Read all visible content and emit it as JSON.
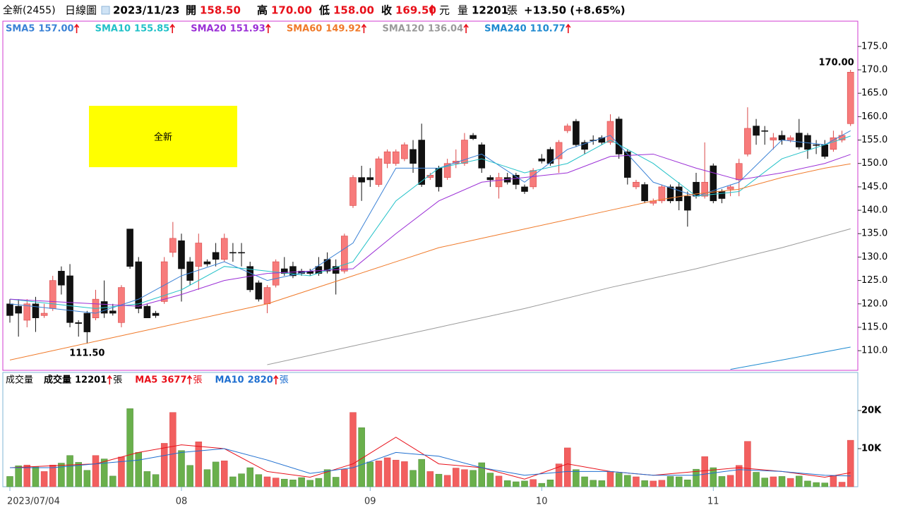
{
  "header": {
    "stock": "全新(2455)",
    "period": "日線圖",
    "date": "2023/11/23",
    "fields": [
      {
        "label": "開",
        "value": "158.50"
      },
      {
        "label": "高",
        "value": "170.00"
      },
      {
        "label": "低",
        "value": "158.00"
      },
      {
        "label": "收",
        "value": "169.50"
      }
    ],
    "unit": "元",
    "volume_label": "量",
    "volume": "12201",
    "volume_unit": "張",
    "change": "+13.50 (+8.65%)"
  },
  "chart_data": [
    {
      "type": "candlestick",
      "categories": [
        "2023/07/04",
        null,
        null,
        null,
        null,
        null,
        null,
        null,
        null,
        null,
        null,
        null,
        null,
        null,
        null,
        null,
        null,
        null,
        null,
        null,
        "08",
        null,
        null,
        null,
        null,
        null,
        null,
        null,
        null,
        null,
        null,
        null,
        null,
        null,
        null,
        null,
        null,
        null,
        null,
        null,
        null,
        null,
        "09",
        null,
        null,
        null,
        null,
        null,
        null,
        null,
        null,
        null,
        null,
        null,
        null,
        null,
        null,
        null,
        null,
        null,
        null,
        null,
        "10",
        null,
        null,
        null,
        null,
        null,
        null,
        null,
        null,
        null,
        null,
        null,
        null,
        null,
        null,
        null,
        null,
        null,
        null,
        null,
        "11",
        null,
        null,
        null,
        null,
        null,
        null,
        null,
        null,
        null,
        null,
        null,
        null,
        null,
        null,
        null,
        null
      ],
      "open": [
        120,
        119.5,
        116.5,
        120,
        117.5,
        119,
        127,
        126,
        116,
        118,
        117,
        120.5,
        118.5,
        116,
        136,
        129,
        119.5,
        118,
        120.5,
        131,
        133.5,
        129,
        128,
        129,
        131,
        129.5,
        131,
        131,
        128,
        124.5,
        120,
        124,
        127.5,
        128,
        127,
        127,
        128,
        129.5,
        128,
        127,
        141,
        147,
        147,
        145.5,
        150,
        150,
        151,
        153,
        155,
        147,
        149,
        147,
        150,
        150,
        156,
        154,
        147,
        145,
        147,
        147.5,
        145,
        145,
        151,
        153,
        151,
        157,
        159,
        154.5,
        155,
        155.5,
        154.5,
        159.5,
        152.5,
        145,
        145.5,
        141.5,
        142,
        145,
        145,
        143,
        146,
        143,
        149.5,
        144,
        144.5,
        146.5,
        152,
        158,
        157,
        155,
        156,
        155,
        156.5,
        156,
        154,
        154,
        153,
        155,
        158.5
      ],
      "high": [
        121,
        121,
        121,
        121.5,
        120,
        126,
        128,
        128.5,
        116.5,
        118.5,
        123,
        125,
        120,
        124,
        136,
        130,
        120,
        118.5,
        130,
        137.5,
        135,
        130,
        135,
        129.5,
        133,
        135,
        133,
        133,
        129,
        125,
        124,
        129.5,
        130,
        129,
        127.5,
        127.5,
        130,
        131,
        129.5,
        135,
        147.5,
        149.5,
        149,
        151.5,
        153,
        153,
        154.5,
        155,
        158.5,
        148,
        149.5,
        151,
        153,
        156.5,
        156.5,
        154.5,
        147.5,
        148,
        148,
        148,
        145.5,
        149,
        152,
        153.5,
        155,
        158.5,
        159.5,
        155,
        156,
        156,
        160.5,
        160,
        153,
        146.5,
        146,
        142.5,
        145.5,
        145.5,
        146,
        144,
        148,
        154.5,
        150,
        144.5,
        145.5,
        151,
        162,
        159.5,
        158,
        156.5,
        157,
        156,
        159.5,
        156.5,
        155,
        155,
        157,
        157,
        170
      ],
      "low": [
        116,
        113,
        115,
        114,
        117,
        118.5,
        122,
        115,
        113,
        111.5,
        116.5,
        117,
        117.5,
        115,
        127.5,
        118,
        117,
        117,
        120,
        130,
        120.5,
        124,
        123,
        128,
        128,
        129,
        129,
        128,
        122.5,
        120.5,
        118,
        123.5,
        126,
        125.5,
        126,
        126,
        126,
        126.5,
        122,
        126.5,
        140.5,
        142,
        145,
        145,
        149,
        149.5,
        150.5,
        148,
        145,
        146.5,
        144,
        146.5,
        149,
        149.5,
        155,
        148,
        145,
        142.5,
        145.5,
        144.5,
        143.5,
        144.5,
        150,
        149.5,
        148,
        156.5,
        153.5,
        152,
        154,
        154,
        154,
        151,
        145.5,
        144.5,
        141.5,
        141,
        141.5,
        141.5,
        140,
        136.5,
        142.5,
        142.5,
        141.5,
        141.5,
        143,
        143,
        151.5,
        154,
        154,
        153,
        154,
        154.5,
        153,
        151,
        152,
        151,
        152.5,
        154.5,
        158
      ],
      "close": [
        117.5,
        118,
        120,
        117,
        118,
        125,
        124,
        116,
        115.8,
        114,
        121,
        118,
        118,
        123.5,
        128,
        119,
        117,
        117.5,
        129,
        134,
        127.5,
        125,
        133,
        128.5,
        129.5,
        134,
        131,
        131,
        123,
        121,
        123.5,
        129,
        126.5,
        126,
        126.5,
        126.5,
        126.5,
        127,
        126.5,
        134.5,
        147,
        146,
        146.5,
        151,
        152.5,
        152.5,
        154,
        150,
        145.5,
        147.5,
        145,
        150,
        150.5,
        155,
        155.3,
        149,
        146.5,
        147,
        146,
        145.5,
        144,
        148.5,
        150.5,
        150,
        154.5,
        158,
        154,
        153,
        155,
        154.5,
        159,
        152,
        147,
        146,
        142,
        142,
        145,
        142,
        142,
        140,
        143,
        146,
        142,
        142.5,
        145,
        150,
        157.5,
        156,
        157,
        155.5,
        155,
        155.5,
        153.5,
        153,
        154,
        151.5,
        155.5,
        156,
        169.5
      ],
      "up_color": "#f77b7b",
      "down_color": "#111111",
      "ylim": [
        105.8,
        180.4
      ],
      "yticks": [
        {
          "value": 110,
          "label": "110.0"
        },
        {
          "value": 115,
          "label": "115.0"
        },
        {
          "value": 120,
          "label": "120.0"
        },
        {
          "value": 125,
          "label": "125.0"
        },
        {
          "value": 130,
          "label": "130.0"
        },
        {
          "value": 135,
          "label": "135.0"
        },
        {
          "value": 140,
          "label": "140.0"
        },
        {
          "value": 145,
          "label": "145.0"
        },
        {
          "value": 150,
          "label": "150.0"
        },
        {
          "value": 155,
          "label": "155.0"
        },
        {
          "value": 160,
          "label": "160.0"
        },
        {
          "value": 165,
          "label": "165.0"
        },
        {
          "value": 170,
          "label": "170.0"
        },
        {
          "value": 175,
          "label": "175.0"
        }
      ],
      "series": [
        {
          "name": "SMA5",
          "label": "157.00",
          "color": "#3b82d6",
          "x": [
            0,
            5,
            10,
            15,
            20,
            25,
            30,
            35,
            40,
            45,
            50,
            55,
            60,
            65,
            70,
            75,
            80,
            85,
            90,
            95,
            98
          ],
          "values": [
            120,
            119,
            118,
            121,
            126,
            129,
            125,
            127,
            133,
            149,
            149,
            152,
            146,
            153,
            156,
            146,
            143,
            146,
            155,
            154,
            157
          ]
        },
        {
          "name": "SMA10",
          "label": "155.85",
          "color": "#22c1c8",
          "x": [
            0,
            5,
            10,
            15,
            20,
            25,
            30,
            35,
            40,
            45,
            50,
            55,
            60,
            65,
            70,
            75,
            80,
            85,
            90,
            95,
            98
          ],
          "values": [
            121,
            120,
            119,
            120,
            123,
            128,
            127,
            126,
            129,
            142,
            149,
            151,
            148,
            150,
            155,
            150,
            143,
            144,
            151,
            154,
            155.85
          ]
        },
        {
          "name": "SMA20",
          "label": "151.93",
          "color": "#9b2fd6",
          "x": [
            0,
            5,
            10,
            15,
            20,
            25,
            30,
            35,
            40,
            45,
            50,
            55,
            60,
            65,
            70,
            75,
            80,
            85,
            90,
            95,
            98
          ],
          "values": [
            121,
            120.5,
            120,
            119.5,
            122,
            125,
            126.5,
            127,
            127.5,
            135,
            142,
            146,
            147,
            148,
            151.5,
            152,
            149,
            146.5,
            148,
            150,
            151.93
          ]
        },
        {
          "name": "SMA60",
          "label": "149.92",
          "color": "#f07a2a",
          "x": [
            0,
            5,
            10,
            15,
            20,
            25,
            30,
            35,
            40,
            45,
            50,
            55,
            60,
            65,
            70,
            75,
            80,
            85,
            90,
            95,
            98
          ],
          "values": [
            108,
            110,
            112,
            114,
            116,
            118,
            120,
            123,
            126,
            129,
            132,
            134,
            136,
            138,
            140,
            142,
            143.5,
            144.5,
            147,
            149,
            149.92
          ]
        },
        {
          "name": "SMA120",
          "label": "136.04",
          "color": "#9a9a9a",
          "x": [
            30,
            40,
            50,
            60,
            70,
            80,
            90,
            98
          ],
          "values": [
            107,
            111,
            115,
            119,
            123.5,
            127.5,
            132,
            136.04
          ]
        },
        {
          "name": "SMA240",
          "label": "110.77",
          "color": "#1f8ad0",
          "x": [
            84,
            90,
            98
          ],
          "values": [
            106,
            108,
            110.77
          ]
        }
      ],
      "annotations": [
        {
          "text": "170.00",
          "value": 170
        },
        {
          "text": "111.50",
          "value": 111.5
        }
      ],
      "stamp": "全新"
    },
    {
      "type": "bar",
      "title": "成交量",
      "values": [
        2700,
        5500,
        5700,
        5200,
        4000,
        5700,
        6200,
        8200,
        6400,
        4300,
        8200,
        7300,
        2800,
        7800,
        20500,
        9000,
        4000,
        3200,
        11400,
        19500,
        9500,
        5600,
        11800,
        4500,
        6500,
        6800,
        2600,
        3400,
        5000,
        3200,
        2600,
        2300,
        2000,
        1800,
        2400,
        1700,
        2200,
        4500,
        2500,
        4600,
        19500,
        15500,
        6500,
        6800,
        7600,
        7000,
        6600,
        4300,
        7200,
        4000,
        3300,
        3000,
        4900,
        4500,
        4300,
        6300,
        3600,
        2800,
        1600,
        1300,
        1500,
        1900,
        900,
        1800,
        6000,
        10200,
        4500,
        2600,
        1700,
        1600,
        4000,
        3600,
        3000,
        2600,
        1600,
        1500,
        1700,
        2700,
        2600,
        1800,
        4600,
        7900,
        5000,
        2700,
        3000,
        5600,
        11900,
        3800,
        2300,
        2600,
        2700,
        2200,
        2800,
        1500,
        1100,
        1000,
        2800,
        1200,
        12201
      ],
      "up_color": "#f25f5f",
      "down_color": "#6ab04c",
      "ylim": [
        0,
        30000
      ],
      "yticks": [
        {
          "value": 10000,
          "label": "10K"
        },
        {
          "value": 20000,
          "label": "20K"
        }
      ],
      "legend": {
        "name": "成交量",
        "label": "12201",
        "unit": "張",
        "color": "#000000"
      },
      "series": [
        {
          "name": "MA5",
          "label": "3677",
          "unit": "張",
          "color": "#e8101a",
          "x": [
            0,
            5,
            10,
            15,
            20,
            25,
            30,
            35,
            40,
            45,
            50,
            55,
            60,
            65,
            70,
            75,
            80,
            85,
            90,
            95,
            98
          ],
          "values": [
            5000,
            5500,
            6000,
            9000,
            11000,
            10000,
            4000,
            2500,
            6000,
            13000,
            6000,
            5000,
            2000,
            6000,
            4000,
            3000,
            4000,
            5000,
            4000,
            2500,
            3677
          ]
        },
        {
          "name": "MA10",
          "label": "2820",
          "unit": "張",
          "color": "#1f6fd0",
          "x": [
            0,
            5,
            10,
            15,
            20,
            25,
            30,
            35,
            40,
            45,
            50,
            55,
            60,
            65,
            70,
            75,
            80,
            85,
            90,
            95,
            98
          ],
          "values": [
            5000,
            5000,
            6000,
            7000,
            9000,
            10000,
            7000,
            3500,
            5000,
            9000,
            8000,
            5000,
            3000,
            4000,
            4000,
            3000,
            3000,
            4500,
            4000,
            3000,
            2820
          ]
        }
      ]
    }
  ]
}
